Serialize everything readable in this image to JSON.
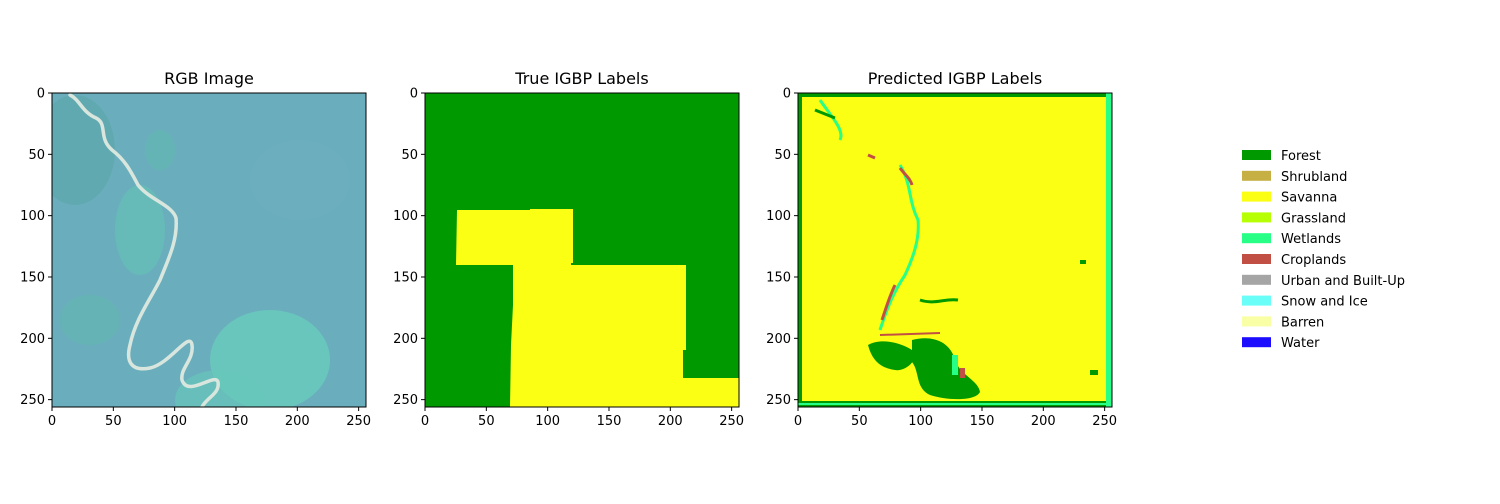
{
  "panels": [
    {
      "title": "RGB Image"
    },
    {
      "title": "True IGBP Labels"
    },
    {
      "title": "Predicted IGBP Labels"
    }
  ],
  "axis": {
    "x_ticks": [
      "0",
      "50",
      "100",
      "150",
      "200",
      "250"
    ],
    "y_ticks": [
      "0",
      "50",
      "100",
      "150",
      "200",
      "250"
    ],
    "range": [
      0,
      256
    ]
  },
  "legend": {
    "items": [
      {
        "label": "Forest",
        "color": "#009900"
      },
      {
        "label": "Shrubland",
        "color": "#c6b044"
      },
      {
        "label": "Savanna",
        "color": "#fbff13"
      },
      {
        "label": "Grassland",
        "color": "#b6ff05"
      },
      {
        "label": "Wetlands",
        "color": "#27ff87"
      },
      {
        "label": "Croplands",
        "color": "#c24f44"
      },
      {
        "label": "Urban and Built-Up",
        "color": "#a5a5a5"
      },
      {
        "label": "Snow and Ice",
        "color": "#69fff8"
      },
      {
        "label": "Barren",
        "color": "#f9ffa4"
      },
      {
        "label": "Water",
        "color": "#1c0dff"
      }
    ]
  }
}
